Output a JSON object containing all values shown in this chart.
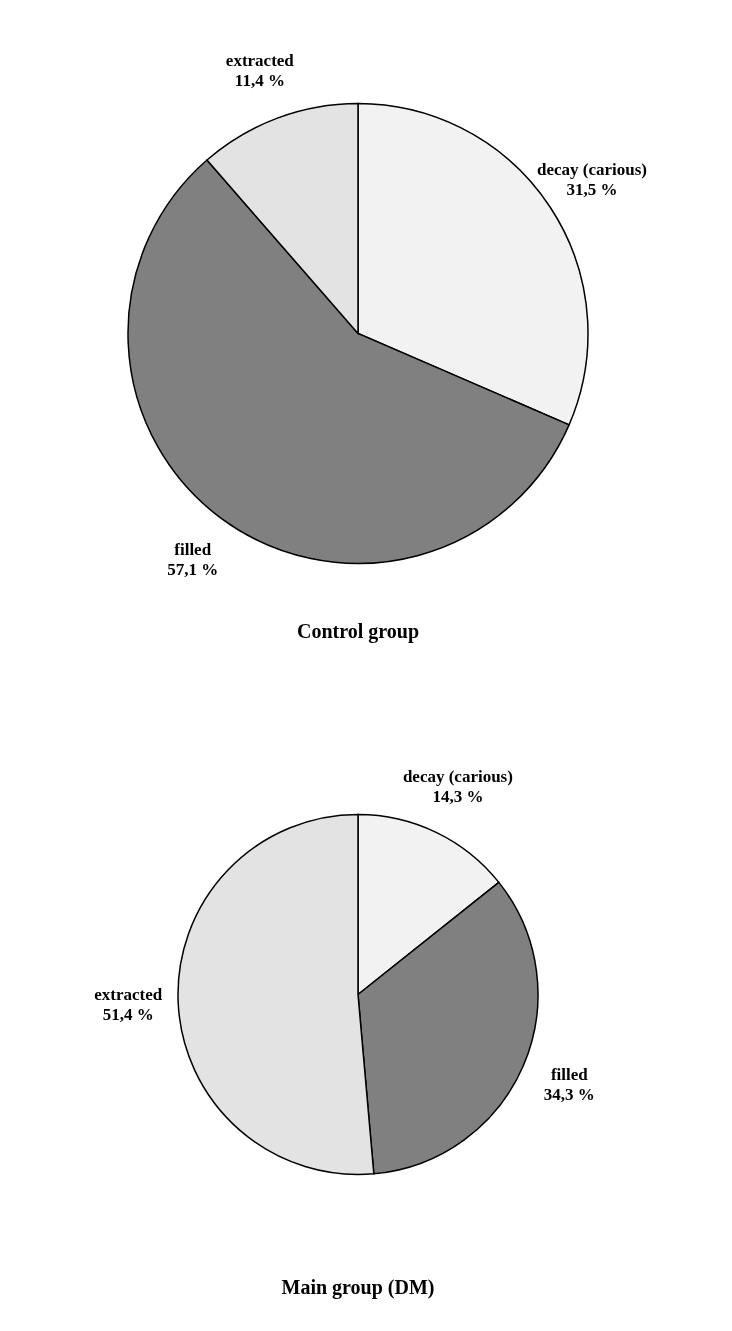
{
  "chart_data": [
    {
      "type": "pie",
      "title": "Control group",
      "categories": [
        "decay (carious)",
        "filled",
        "extracted"
      ],
      "values": [
        31.5,
        57.1,
        11.4
      ],
      "value_labels": [
        "31,5 %",
        "57,1 %",
        "11,4 %"
      ],
      "colors": [
        "#f2f2f2",
        "#808080",
        "#e3e3e3"
      ]
    },
    {
      "type": "pie",
      "title": "Main group (DM)",
      "categories": [
        "decay (carious)",
        "filled",
        "extracted"
      ],
      "values": [
        14.3,
        34.3,
        51.4
      ],
      "value_labels": [
        "14,3 %",
        "34,3 %",
        "51,4 %"
      ],
      "colors": [
        "#f2f2f2",
        "#808080",
        "#e3e3e3"
      ]
    }
  ]
}
